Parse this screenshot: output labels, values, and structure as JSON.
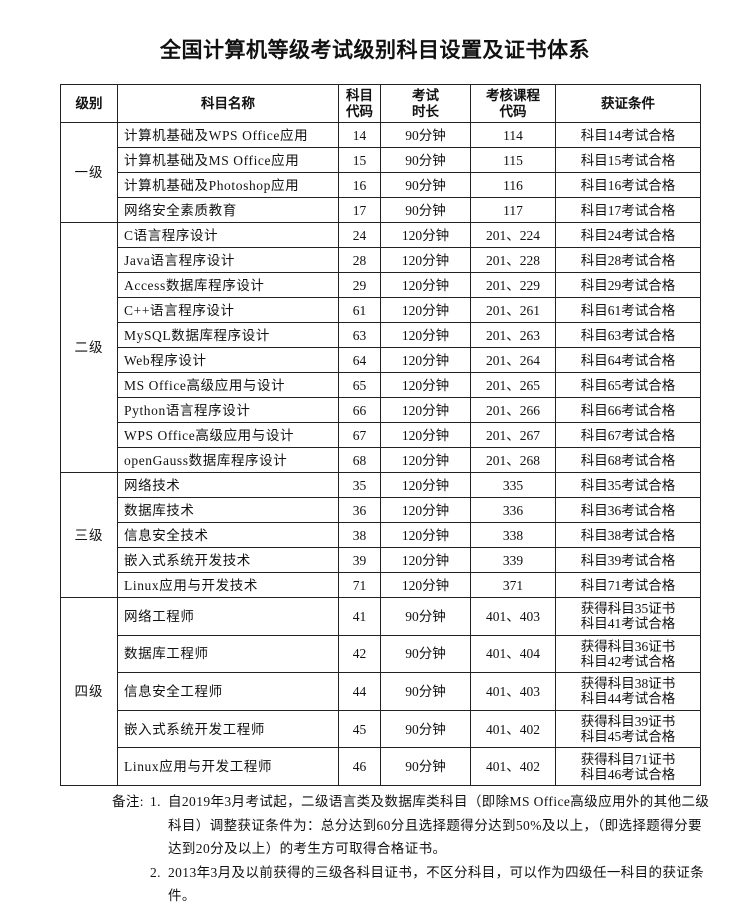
{
  "title": "全国计算机等级考试级别科目设置及证书体系",
  "headers": [
    "级别",
    "科目名称",
    "科目\n代码",
    "考试\n时长",
    "考核课程\n代码",
    "获证条件"
  ],
  "levels": [
    {
      "name": "一级",
      "rows": [
        [
          "计算机基础及WPS Office应用",
          "14",
          "90分钟",
          "114",
          "科目14考试合格"
        ],
        [
          "计算机基础及MS Office应用",
          "15",
          "90分钟",
          "115",
          "科目15考试合格"
        ],
        [
          "计算机基础及Photoshop应用",
          "16",
          "90分钟",
          "116",
          "科目16考试合格"
        ],
        [
          "网络安全素质教育",
          "17",
          "90分钟",
          "117",
          "科目17考试合格"
        ]
      ]
    },
    {
      "name": "二级",
      "rows": [
        [
          "C语言程序设计",
          "24",
          "120分钟",
          "201、224",
          "科目24考试合格"
        ],
        [
          "Java语言程序设计",
          "28",
          "120分钟",
          "201、228",
          "科目28考试合格"
        ],
        [
          "Access数据库程序设计",
          "29",
          "120分钟",
          "201、229",
          "科目29考试合格"
        ],
        [
          "C++语言程序设计",
          "61",
          "120分钟",
          "201、261",
          "科目61考试合格"
        ],
        [
          "MySQL数据库程序设计",
          "63",
          "120分钟",
          "201、263",
          "科目63考试合格"
        ],
        [
          "Web程序设计",
          "64",
          "120分钟",
          "201、264",
          "科目64考试合格"
        ],
        [
          "MS Office高级应用与设计",
          "65",
          "120分钟",
          "201、265",
          "科目65考试合格"
        ],
        [
          "Python语言程序设计",
          "66",
          "120分钟",
          "201、266",
          "科目66考试合格"
        ],
        [
          "WPS Office高级应用与设计",
          "67",
          "120分钟",
          "201、267",
          "科目67考试合格"
        ],
        [
          "openGauss数据库程序设计",
          "68",
          "120分钟",
          "201、268",
          "科目68考试合格"
        ]
      ]
    },
    {
      "name": "三级",
      "rows": [
        [
          "网络技术",
          "35",
          "120分钟",
          "335",
          "科目35考试合格"
        ],
        [
          "数据库技术",
          "36",
          "120分钟",
          "336",
          "科目36考试合格"
        ],
        [
          "信息安全技术",
          "38",
          "120分钟",
          "338",
          "科目38考试合格"
        ],
        [
          "嵌入式系统开发技术",
          "39",
          "120分钟",
          "339",
          "科目39考试合格"
        ],
        [
          "Linux应用与开发技术",
          "71",
          "120分钟",
          "371",
          "科目71考试合格"
        ]
      ]
    },
    {
      "name": "四级",
      "rows": [
        [
          "网络工程师",
          "41",
          "90分钟",
          "401、403",
          "获得科目35证书\n科目41考试合格"
        ],
        [
          "数据库工程师",
          "42",
          "90分钟",
          "401、404",
          "获得科目36证书\n科目42考试合格"
        ],
        [
          "信息安全工程师",
          "44",
          "90分钟",
          "401、403",
          "获得科目38证书\n科目44考试合格"
        ],
        [
          "嵌入式系统开发工程师",
          "45",
          "90分钟",
          "401、402",
          "获得科目39证书\n科目45考试合格"
        ],
        [
          "Linux应用与开发工程师",
          "46",
          "90分钟",
          "401、402",
          "获得科目71证书\n科目46考试合格"
        ]
      ]
    }
  ],
  "notes": {
    "label": "备注:",
    "items": [
      {
        "num": "1.",
        "text": "自2019年3月考试起，二级语言类及数据库类科目（即除MS Office高级应用外的其他二级科目）调整获证条件为：总分达到60分且选择题得分达到50%及以上，（即选择题得分要达到20分及以上）的考生方可取得合格证书。"
      },
      {
        "num": "2.",
        "text": "2013年3月及以前获得的三级各科目证书，不区分科目，可以作为四级任一科目的获证条件。"
      }
    ]
  }
}
